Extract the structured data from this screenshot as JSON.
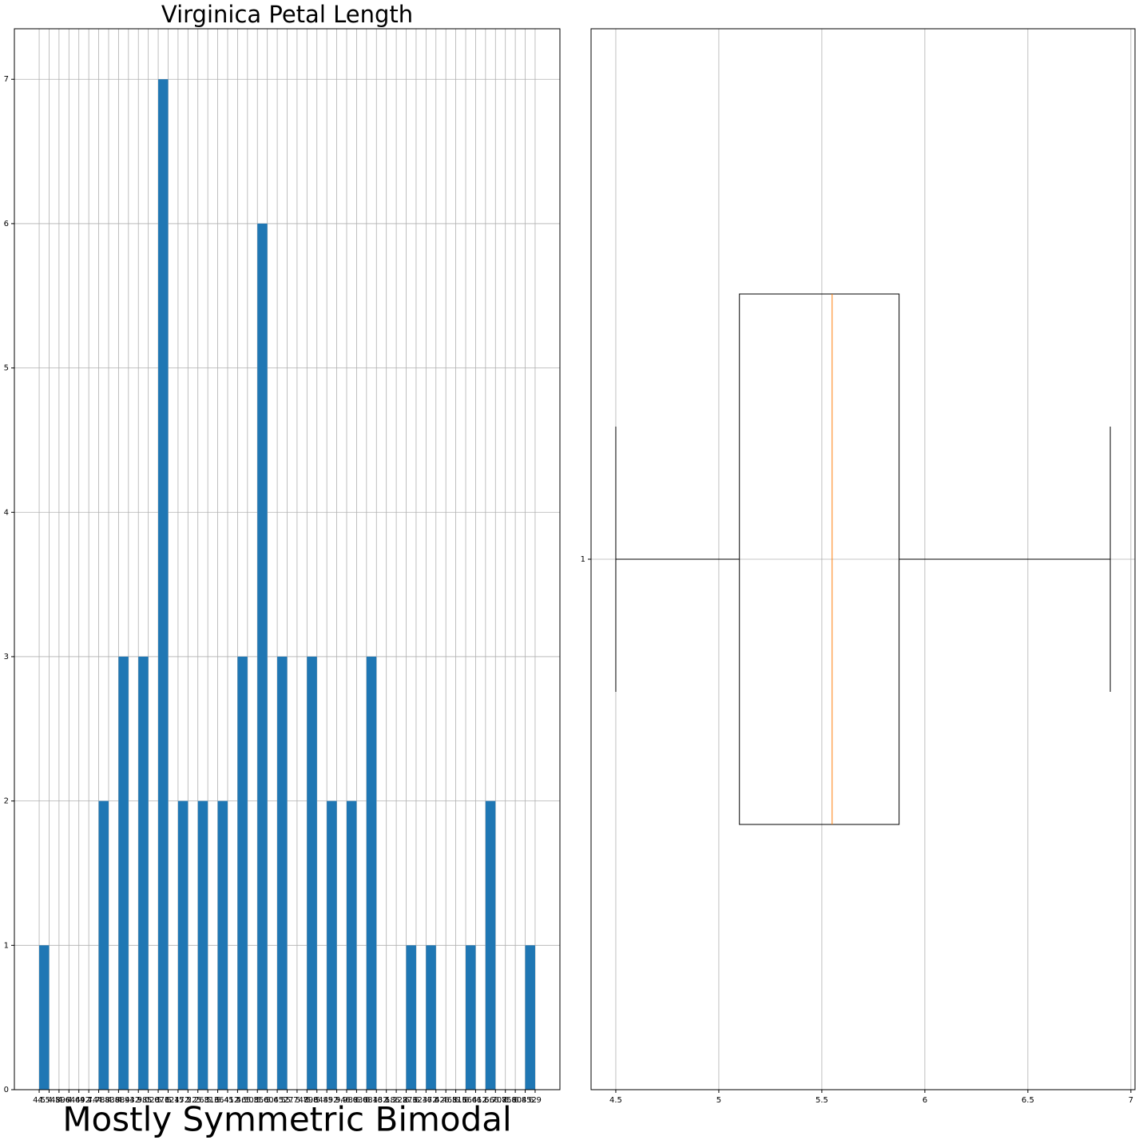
{
  "chart_data": [
    {
      "type": "histogram",
      "title": "Virginica Petal Length",
      "xlabel": "Mostly Symmetric Bimodal",
      "bins": [
        4.5,
        4.548,
        4.596,
        4.644,
        4.692,
        4.74,
        4.788,
        4.836,
        4.884,
        4.932,
        4.98,
        5.028,
        5.076,
        5.124,
        5.172,
        5.22,
        5.268,
        5.316,
        5.364,
        5.412,
        5.46,
        5.508,
        5.556,
        5.604,
        5.652,
        5.7,
        5.748,
        5.796,
        5.844,
        5.892,
        5.94,
        5.988,
        6.036,
        6.084,
        6.132,
        6.18,
        6.228,
        6.276,
        6.324,
        6.372,
        6.42,
        6.468,
        6.516,
        6.564,
        6.612,
        6.66,
        6.708,
        6.756,
        6.804,
        6.852,
        6.9
      ],
      "values": [
        1,
        0,
        0,
        0,
        0,
        0,
        2,
        0,
        3,
        0,
        3,
        0,
        7,
        0,
        2,
        0,
        2,
        0,
        2,
        0,
        3,
        0,
        6,
        0,
        3,
        0,
        0,
        3,
        0,
        2,
        0,
        2,
        0,
        3,
        0,
        0,
        0,
        1,
        0,
        1,
        0,
        0,
        0,
        1,
        0,
        2,
        0,
        0,
        0,
        1
      ],
      "color": "#1f77b4",
      "xlim": [
        4.38,
        7.02
      ],
      "xticks": [
        4.5,
        4.548,
        4.596,
        4.644,
        4.692,
        4.74,
        4.788,
        4.836,
        4.884,
        4.932,
        4.98,
        5.028,
        5.076,
        5.124,
        5.172,
        5.22,
        5.268,
        5.316,
        5.364,
        5.412,
        5.46,
        5.508,
        5.556,
        5.604,
        5.652,
        5.7,
        5.748,
        5.796,
        5.844,
        5.892,
        5.94,
        5.988,
        6.036,
        6.084,
        6.132,
        6.18,
        6.228,
        6.276,
        6.324,
        6.372,
        6.42,
        6.468,
        6.516,
        6.564,
        6.612,
        6.66,
        6.708,
        6.756,
        6.804,
        6.852,
        6.9
      ],
      "ylim": [
        0,
        7.35
      ],
      "yticks": [
        0,
        1,
        2,
        3,
        4,
        5,
        6,
        7
      ],
      "grid": true
    },
    {
      "type": "box",
      "orientation": "horizontal",
      "whislo": 4.5,
      "q1": 5.1,
      "median": 5.55,
      "q3": 5.875,
      "whishi": 6.9,
      "color": "#000000",
      "median_color": "#ff7f0e",
      "xlim": [
        4.38,
        7.02
      ],
      "xticks": [
        4.5,
        5.0,
        5.5,
        6.0,
        6.5,
        7.0
      ],
      "ylim": [
        0.5,
        1.5
      ],
      "yticks": [
        1
      ],
      "grid": true
    }
  ]
}
